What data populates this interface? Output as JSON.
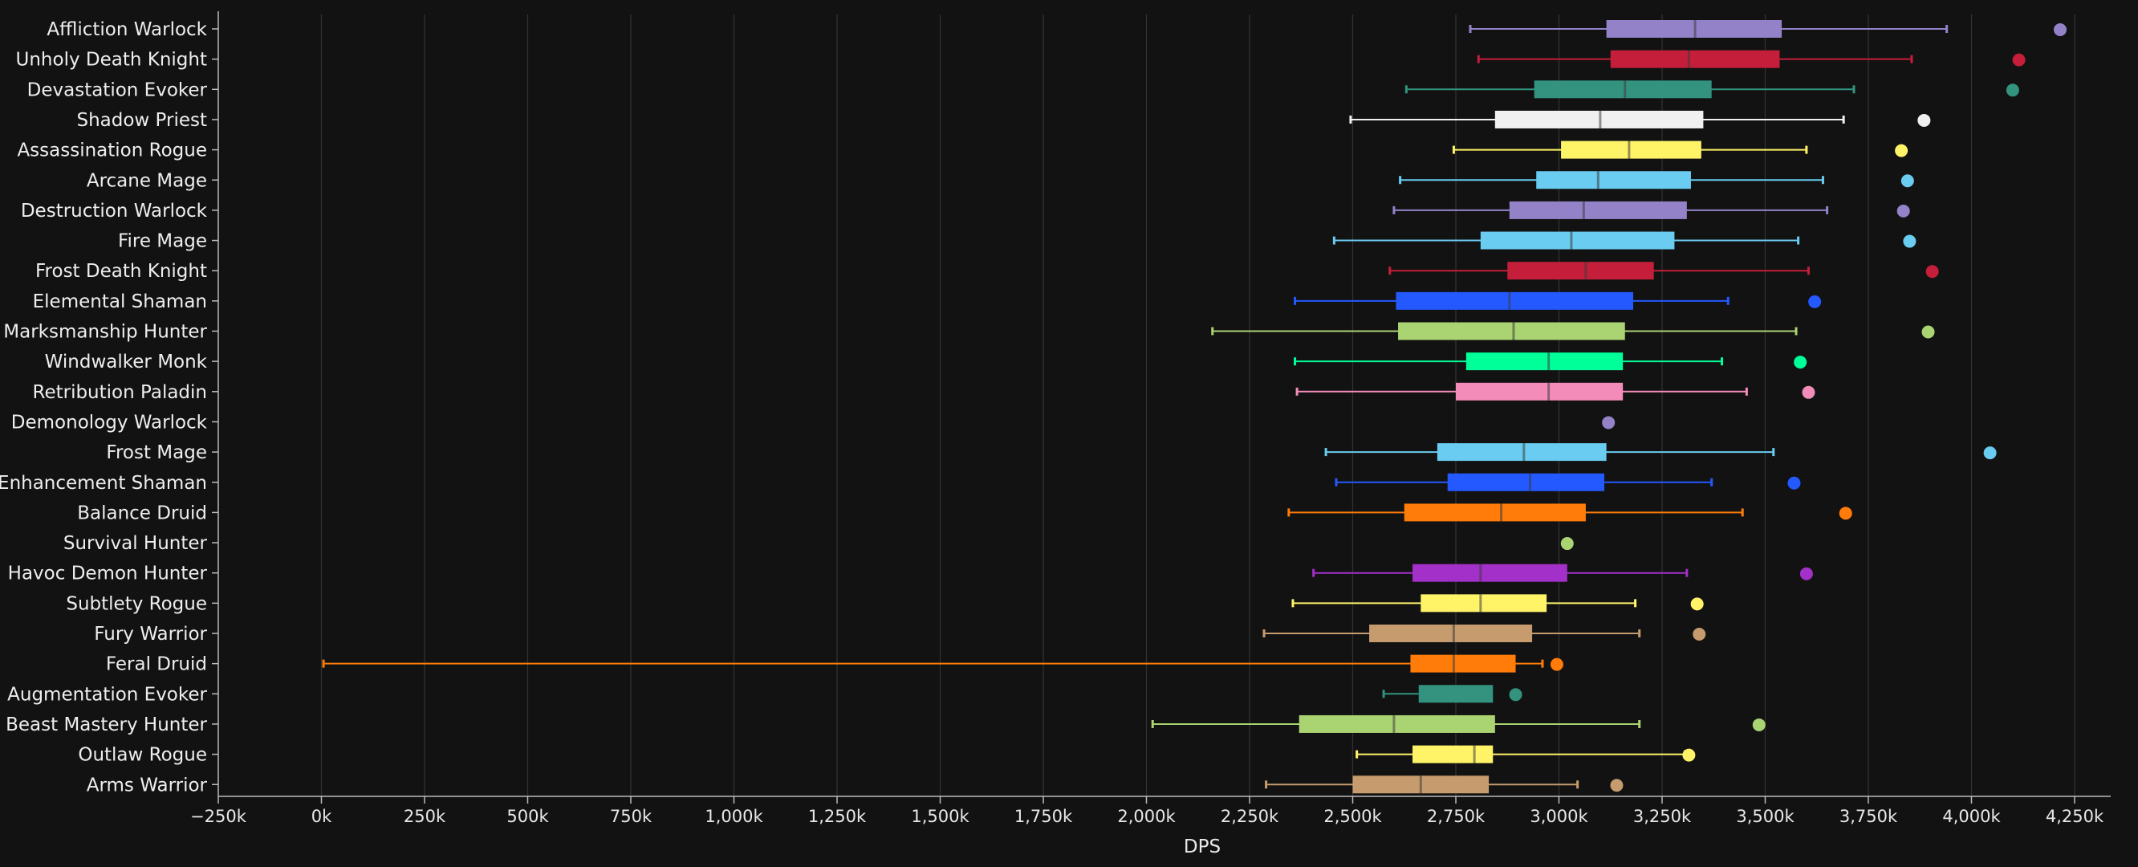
{
  "chart_data": {
    "type": "box",
    "xlabel": "DPS",
    "ylabel": "",
    "title": "",
    "xlim": [
      -250000,
      4320000
    ],
    "x_ticks": [
      -250000,
      0,
      250000,
      500000,
      750000,
      1000000,
      1250000,
      1500000,
      1750000,
      2000000,
      2250000,
      2500000,
      2750000,
      3000000,
      3250000,
      3500000,
      3750000,
      4000000,
      4250000
    ],
    "x_tick_labels": [
      "−250k",
      "0k",
      "250k",
      "500k",
      "750k",
      "1,000k",
      "1,250k",
      "1,500k",
      "1,750k",
      "2,000k",
      "2,250k",
      "2,500k",
      "2,750k",
      "3,000k",
      "3,250k",
      "3,500k",
      "3,750k",
      "4,000k",
      "4,250k"
    ],
    "grid": "vertical",
    "legend": "none",
    "series": [
      {
        "name": "Affliction Warlock",
        "color": "#9482C9",
        "min": 2785000,
        "q1": 3115000,
        "median": 3330000,
        "q3": 3540000,
        "max": 3940000,
        "outlier": 4215000
      },
      {
        "name": "Unholy Death Knight",
        "color": "#C41E3A",
        "min": 2805000,
        "q1": 3125000,
        "median": 3315000,
        "q3": 3535000,
        "max": 3855000,
        "outlier": 4115000
      },
      {
        "name": "Devastation Evoker",
        "color": "#33937F",
        "min": 2630000,
        "q1": 2940000,
        "median": 3160000,
        "q3": 3370000,
        "max": 3715000,
        "outlier": 4100000
      },
      {
        "name": "Shadow Priest",
        "color": "#F0F0F0",
        "min": 2495000,
        "q1": 2845000,
        "median": 3100000,
        "q3": 3350000,
        "max": 3690000,
        "outlier": 3885000
      },
      {
        "name": "Assassination Rogue",
        "color": "#FFF468",
        "min": 2745000,
        "q1": 3005000,
        "median": 3170000,
        "q3": 3345000,
        "max": 3600000,
        "outlier": 3830000
      },
      {
        "name": "Arcane Mage",
        "color": "#69CCF0",
        "min": 2615000,
        "q1": 2945000,
        "median": 3095000,
        "q3": 3320000,
        "max": 3640000,
        "outlier": 3845000
      },
      {
        "name": "Destruction Warlock",
        "color": "#9482C9",
        "min": 2600000,
        "q1": 2880000,
        "median": 3060000,
        "q3": 3310000,
        "max": 3650000,
        "outlier": 3835000
      },
      {
        "name": "Fire Mage",
        "color": "#69CCF0",
        "min": 2455000,
        "q1": 2810000,
        "median": 3030000,
        "q3": 3280000,
        "max": 3580000,
        "outlier": 3850000
      },
      {
        "name": "Frost Death Knight",
        "color": "#C41E3A",
        "min": 2590000,
        "q1": 2875000,
        "median": 3065000,
        "q3": 3230000,
        "max": 3605000,
        "outlier": 3905000
      },
      {
        "name": "Elemental Shaman",
        "color": "#2459FF",
        "min": 2360000,
        "q1": 2605000,
        "median": 2880000,
        "q3": 3180000,
        "max": 3410000,
        "outlier": 3620000
      },
      {
        "name": "Marksmanship Hunter",
        "color": "#AAD372",
        "min": 2160000,
        "q1": 2610000,
        "median": 2890000,
        "q3": 3160000,
        "max": 3575000,
        "outlier": 3895000
      },
      {
        "name": "Windwalker Monk",
        "color": "#00FF98",
        "min": 2360000,
        "q1": 2775000,
        "median": 2975000,
        "q3": 3155000,
        "max": 3395000,
        "outlier": 3585000
      },
      {
        "name": "Retribution Paladin",
        "color": "#F48CBA",
        "min": 2365000,
        "q1": 2750000,
        "median": 2975000,
        "q3": 3155000,
        "max": 3455000,
        "outlier": 3605000
      },
      {
        "name": "Demonology Warlock",
        "color": "#9482C9",
        "min": null,
        "q1": null,
        "median": null,
        "q3": null,
        "max": null,
        "outlier": 3120000
      },
      {
        "name": "Frost Mage",
        "color": "#69CCF0",
        "min": 2435000,
        "q1": 2705000,
        "median": 2915000,
        "q3": 3115000,
        "max": 3520000,
        "outlier": 4045000
      },
      {
        "name": "Enhancement Shaman",
        "color": "#2459FF",
        "min": 2460000,
        "q1": 2730000,
        "median": 2930000,
        "q3": 3110000,
        "max": 3370000,
        "outlier": 3570000
      },
      {
        "name": "Balance Druid",
        "color": "#FF7C0A",
        "min": 2345000,
        "q1": 2625000,
        "median": 2860000,
        "q3": 3065000,
        "max": 3445000,
        "outlier": 3695000
      },
      {
        "name": "Survival Hunter",
        "color": "#AAD372",
        "min": null,
        "q1": null,
        "median": null,
        "q3": null,
        "max": null,
        "outlier": 3020000
      },
      {
        "name": "Havoc Demon Hunter",
        "color": "#A330C9",
        "min": 2405000,
        "q1": 2645000,
        "median": 2810000,
        "q3": 3020000,
        "max": 3310000,
        "outlier": 3600000
      },
      {
        "name": "Subtlety Rogue",
        "color": "#FFF468",
        "min": 2355000,
        "q1": 2665000,
        "median": 2810000,
        "q3": 2970000,
        "max": 3185000,
        "outlier": 3335000
      },
      {
        "name": "Fury Warrior",
        "color": "#C69B6D",
        "min": 2285000,
        "q1": 2540000,
        "median": 2745000,
        "q3": 2935000,
        "max": 3195000,
        "outlier": 3340000
      },
      {
        "name": "Feral Druid",
        "color": "#FF7C0A",
        "min": 5000,
        "q1": 2640000,
        "median": 2745000,
        "q3": 2895000,
        "max": 2960000,
        "outlier": 2995000
      },
      {
        "name": "Augmentation Evoker",
        "color": "#33937F",
        "min": 2575000,
        "q1": 2660000,
        "median": null,
        "q3": 2840000,
        "max": null,
        "outlier": 2895000
      },
      {
        "name": "Beast Mastery Hunter",
        "color": "#AAD372",
        "min": 2015000,
        "q1": 2370000,
        "median": 2600000,
        "q3": 2845000,
        "max": 3195000,
        "outlier": 3485000
      },
      {
        "name": "Outlaw Rogue",
        "color": "#FFF468",
        "min": 2510000,
        "q1": 2645000,
        "median": 2795000,
        "q3": 2840000,
        "max": 3305000,
        "outlier": 3315000
      },
      {
        "name": "Arms Warrior",
        "color": "#C69B6D",
        "min": 2290000,
        "q1": 2500000,
        "median": 2665000,
        "q3": 2830000,
        "max": 3045000,
        "outlier": 3140000
      }
    ]
  }
}
